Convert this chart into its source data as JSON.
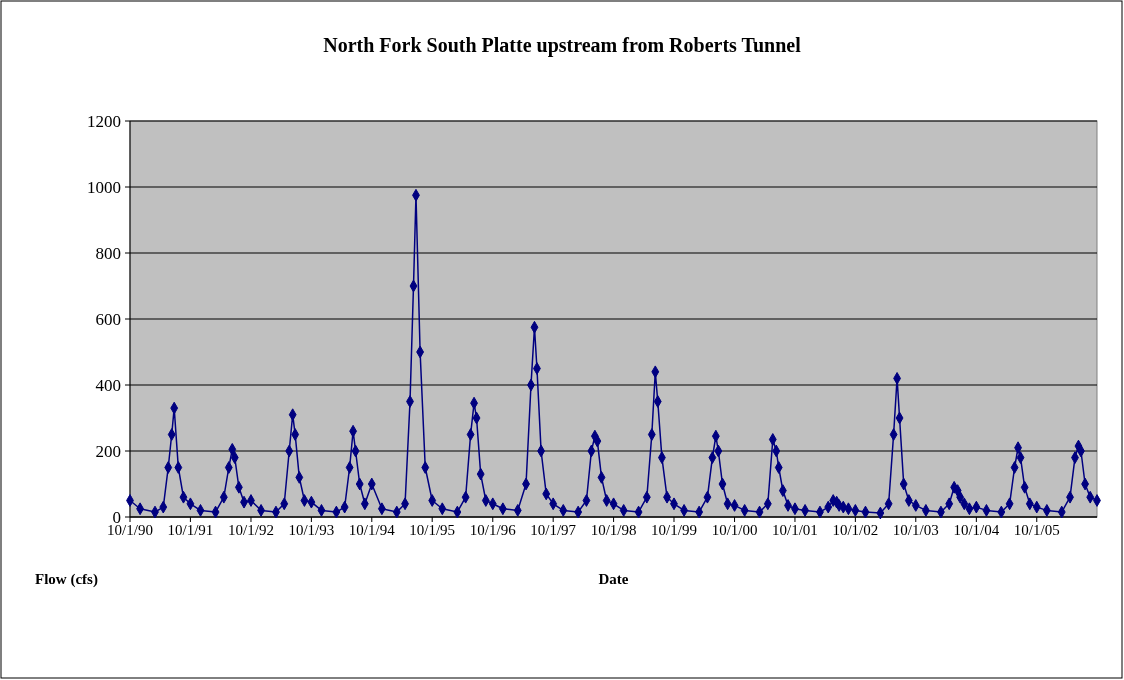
{
  "chart_data": {
    "type": "line",
    "title": "North Fork South Platte upstream from Roberts Tunnel",
    "xlabel": "Date",
    "ylabel": "Flow (cfs)",
    "x": [
      "1990-10-01",
      "1990-12-01",
      "1991-03-01",
      "1991-04-20",
      "1991-05-20",
      "1991-06-10",
      "1991-06-25",
      "1991-07-20",
      "1991-08-20",
      "1991-10-01",
      "1991-12-01",
      "1992-03-01",
      "1992-04-20",
      "1992-05-20",
      "1992-06-10",
      "1992-06-25",
      "1992-07-20",
      "1992-08-20",
      "1992-10-01",
      "1992-12-01",
      "1993-03-01",
      "1993-04-20",
      "1993-05-20",
      "1993-06-10",
      "1993-06-25",
      "1993-07-20",
      "1993-08-20",
      "1993-10-01",
      "1993-12-01",
      "1994-03-01",
      "1994-04-20",
      "1994-05-20",
      "1994-06-10",
      "1994-06-25",
      "1994-07-20",
      "1994-08-20",
      "1994-10-01",
      "1994-12-01",
      "1995-03-01",
      "1995-04-20",
      "1995-05-20",
      "1995-06-10",
      "1995-06-25",
      "1995-07-20",
      "1995-08-20",
      "1995-10-01",
      "1995-12-01",
      "1996-03-01",
      "1996-04-20",
      "1996-05-20",
      "1996-06-10",
      "1996-06-25",
      "1996-07-20",
      "1996-08-20",
      "1996-10-01",
      "1996-12-01",
      "1997-03-01",
      "1997-04-20",
      "1997-05-20",
      "1997-06-10",
      "1997-06-25",
      "1997-07-20",
      "1997-08-20",
      "1997-10-01",
      "1997-12-01",
      "1998-03-01",
      "1998-04-20",
      "1998-05-20",
      "1998-06-10",
      "1998-06-25",
      "1998-07-20",
      "1998-08-20",
      "1998-10-01",
      "1998-12-01",
      "1999-03-01",
      "1999-04-20",
      "1999-05-20",
      "1999-06-10",
      "1999-06-25",
      "1999-07-20",
      "1999-08-20",
      "1999-10-01",
      "1999-12-01",
      "2000-03-01",
      "2000-04-20",
      "2000-05-20",
      "2000-06-10",
      "2000-06-25",
      "2000-07-20",
      "2000-08-20",
      "2000-10-01",
      "2000-12-01",
      "2001-03-01",
      "2001-04-20",
      "2001-05-20",
      "2001-06-10",
      "2001-06-25",
      "2001-07-20",
      "2001-08-20",
      "2001-10-01",
      "2001-12-01",
      "2002-03-01",
      "2002-04-20",
      "2002-05-20",
      "2002-06-10",
      "2002-06-25",
      "2002-07-20",
      "2002-08-20",
      "2002-10-01",
      "2002-12-01",
      "2003-03-01",
      "2003-04-20",
      "2003-05-20",
      "2003-06-10",
      "2003-06-25",
      "2003-07-20",
      "2003-08-20",
      "2003-10-01",
      "2003-12-01",
      "2004-03-01",
      "2004-04-20",
      "2004-05-20",
      "2004-06-10",
      "2004-06-25",
      "2004-07-20",
      "2004-08-20",
      "2004-10-01",
      "2004-12-01",
      "2005-03-01",
      "2005-04-20",
      "2005-05-20",
      "2005-06-10",
      "2005-06-25",
      "2005-07-20",
      "2005-08-20",
      "2005-10-01",
      "2005-12-01",
      "2006-03-01",
      "2006-04-20",
      "2006-05-20",
      "2006-06-10",
      "2006-06-25",
      "2006-07-20",
      "2006-08-20",
      "2006-09-30"
    ],
    "series": [
      {
        "color": "#000080",
        "values": [
          50,
          25,
          15,
          30,
          150,
          250,
          330,
          150,
          60,
          40,
          20,
          15,
          60,
          150,
          205,
          180,
          90,
          45,
          50,
          20,
          15,
          40,
          200,
          310,
          250,
          120,
          50,
          45,
          20,
          15,
          30,
          150,
          260,
          200,
          100,
          40,
          100,
          25,
          15,
          40,
          350,
          700,
          975,
          500,
          150,
          50,
          25,
          15,
          60,
          250,
          345,
          300,
          130,
          50,
          40,
          25,
          20,
          100,
          400,
          575,
          450,
          200,
          70,
          40,
          20,
          15,
          50,
          200,
          245,
          230,
          120,
          50,
          40,
          20,
          15,
          60,
          250,
          440,
          350,
          180,
          60,
          40,
          20,
          15,
          60,
          180,
          245,
          200,
          100,
          40,
          35,
          20,
          15,
          40,
          235,
          200,
          150,
          80,
          35,
          25,
          20,
          15,
          30,
          50,
          45,
          35,
          30,
          25,
          20,
          15,
          12,
          40,
          250,
          420,
          300,
          100,
          50,
          35,
          20,
          15,
          40,
          90,
          80,
          60,
          40,
          25,
          30,
          20,
          15,
          40,
          150,
          210,
          180,
          90,
          40,
          30,
          20,
          15,
          60,
          180,
          215,
          200,
          100,
          60,
          50
        ]
      }
    ],
    "xlim": [
      "1990-10-01",
      "2006-09-30"
    ],
    "xticks": [
      {
        "value": "1990-10-01",
        "label": "10/1/90"
      },
      {
        "value": "1991-10-01",
        "label": "10/1/91"
      },
      {
        "value": "1992-10-01",
        "label": "10/1/92"
      },
      {
        "value": "1993-10-01",
        "label": "10/1/93"
      },
      {
        "value": "1994-10-01",
        "label": "10/1/94"
      },
      {
        "value": "1995-10-01",
        "label": "10/1/95"
      },
      {
        "value": "1996-10-01",
        "label": "10/1/96"
      },
      {
        "value": "1997-10-01",
        "label": "10/1/97"
      },
      {
        "value": "1998-10-01",
        "label": "10/1/98"
      },
      {
        "value": "1999-10-01",
        "label": "10/1/99"
      },
      {
        "value": "2000-10-01",
        "label": "10/1/00"
      },
      {
        "value": "2001-10-01",
        "label": "10/1/01"
      },
      {
        "value": "2002-10-01",
        "label": "10/1/02"
      },
      {
        "value": "2003-10-01",
        "label": "10/1/03"
      },
      {
        "value": "2004-10-01",
        "label": "10/1/04"
      },
      {
        "value": "2005-10-01",
        "label": "10/1/05"
      }
    ],
    "ylim": [
      0,
      1200
    ],
    "yticks": [
      0,
      200,
      400,
      600,
      800,
      1000,
      1200
    ],
    "grid": "y",
    "marker": "diamond",
    "line_style": "solid"
  }
}
